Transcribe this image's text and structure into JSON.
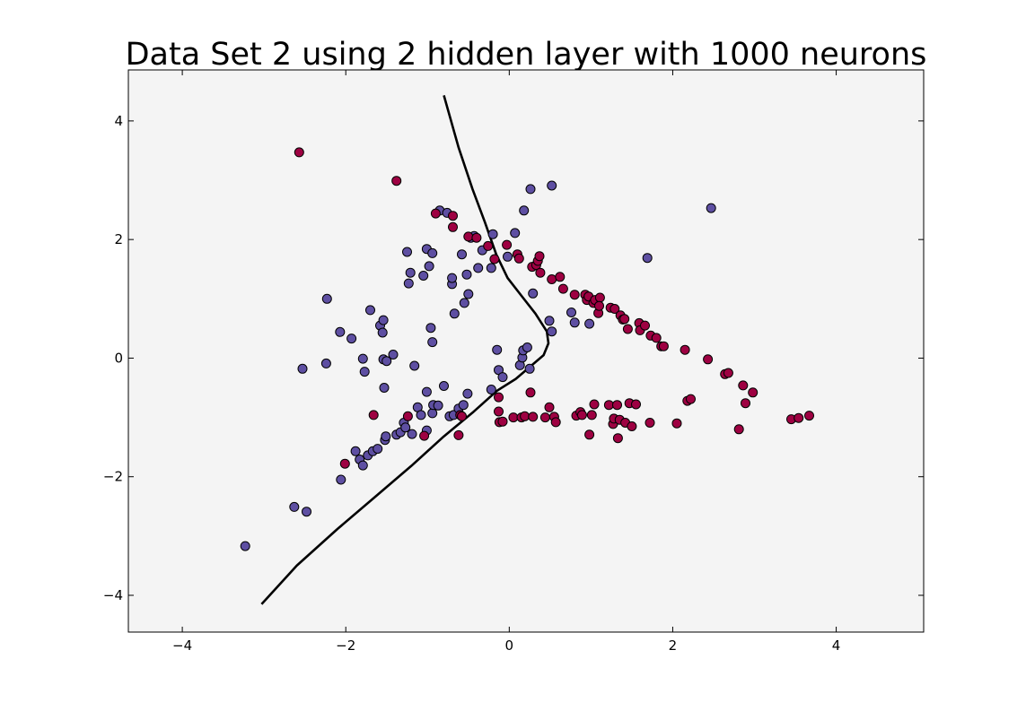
{
  "chart_data": {
    "type": "scatter",
    "title": "Data Set 2 using 2 hidden layer with 1000 neurons",
    "xlabel": "",
    "ylabel": "",
    "xlim": [
      -4.66,
      5.07
    ],
    "ylim": [
      -4.62,
      4.86
    ],
    "xticks": [
      -4,
      -2,
      0,
      2,
      4
    ],
    "yticks": [
      -4,
      -2,
      0,
      2,
      4
    ],
    "xtick_labels": [
      "−4",
      "−2",
      "0",
      "2",
      "4"
    ],
    "ytick_labels": [
      "−4",
      "−2",
      "0",
      "2",
      "4"
    ],
    "grid": false,
    "background": "#f4f4f4",
    "series": [
      {
        "color": "#5e4fa2",
        "points": [
          [
            -3.23,
            -3.17
          ],
          [
            -2.63,
            -2.51
          ],
          [
            -2.48,
            -2.59
          ],
          [
            -2.53,
            -0.18
          ],
          [
            -2.24,
            -0.09
          ],
          [
            -2.23,
            1.0
          ],
          [
            -2.07,
            0.44
          ],
          [
            -2.06,
            -2.05
          ],
          [
            -1.93,
            0.33
          ],
          [
            -1.79,
            -0.01
          ],
          [
            -1.77,
            -0.23
          ],
          [
            -1.7,
            0.81
          ],
          [
            -1.88,
            -1.57
          ],
          [
            -1.83,
            -1.71
          ],
          [
            -1.79,
            -1.81
          ],
          [
            -1.73,
            -1.64
          ],
          [
            -1.67,
            -1.57
          ],
          [
            -1.61,
            -1.53
          ],
          [
            -1.58,
            0.55
          ],
          [
            -1.54,
            0.64
          ],
          [
            -1.55,
            0.43
          ],
          [
            -1.54,
            -0.02
          ],
          [
            -1.5,
            -0.05
          ],
          [
            -1.53,
            -0.5
          ],
          [
            -1.52,
            -1.38
          ],
          [
            -1.51,
            -1.32
          ],
          [
            -1.38,
            -1.29
          ],
          [
            -1.33,
            -1.25
          ],
          [
            -1.42,
            0.06
          ],
          [
            -1.25,
            1.79
          ],
          [
            -1.23,
            1.26
          ],
          [
            -1.21,
            1.44
          ],
          [
            -1.29,
            -1.09
          ],
          [
            -1.27,
            -1.17
          ],
          [
            -1.19,
            -1.28
          ],
          [
            -1.16,
            -0.13
          ],
          [
            -1.12,
            -0.83
          ],
          [
            -1.08,
            -0.96
          ],
          [
            -1.05,
            1.39
          ],
          [
            -1.01,
            1.84
          ],
          [
            -1.01,
            -0.57
          ],
          [
            -1.01,
            -1.22
          ],
          [
            -0.98,
            1.55
          ],
          [
            -0.96,
            0.51
          ],
          [
            -0.94,
            1.77
          ],
          [
            -0.94,
            0.27
          ],
          [
            -0.94,
            -0.93
          ],
          [
            -0.93,
            -0.79
          ],
          [
            -0.87,
            -0.8
          ],
          [
            -0.85,
            2.49
          ],
          [
            -0.8,
            -0.47
          ],
          [
            -0.76,
            2.45
          ],
          [
            -0.73,
            -0.98
          ],
          [
            -0.7,
            1.25
          ],
          [
            -0.7,
            1.35
          ],
          [
            -0.68,
            -0.96
          ],
          [
            -0.67,
            0.75
          ],
          [
            -0.62,
            -0.85
          ],
          [
            -0.58,
            1.75
          ],
          [
            -0.55,
            0.93
          ],
          [
            -0.56,
            -0.79
          ],
          [
            -0.52,
            1.41
          ],
          [
            -0.51,
            -0.6
          ],
          [
            -0.5,
            1.08
          ],
          [
            -0.47,
            2.03
          ],
          [
            -0.43,
            2.06
          ],
          [
            -0.38,
            1.52
          ],
          [
            -0.33,
            1.82
          ],
          [
            -0.22,
            1.52
          ],
          [
            -0.22,
            -0.53
          ],
          [
            -0.2,
            2.09
          ],
          [
            -0.15,
            0.14
          ],
          [
            -0.13,
            -0.2
          ],
          [
            -0.08,
            -0.32
          ],
          [
            -0.02,
            1.71
          ],
          [
            0.07,
            2.11
          ],
          [
            0.13,
            -0.12
          ],
          [
            0.16,
            0.01
          ],
          [
            0.17,
            0.13
          ],
          [
            0.18,
            2.49
          ],
          [
            0.22,
            0.18
          ],
          [
            0.25,
            -0.18
          ],
          [
            0.26,
            2.85
          ],
          [
            0.29,
            1.09
          ],
          [
            0.49,
            0.63
          ],
          [
            0.52,
            0.45
          ],
          [
            0.52,
            2.91
          ],
          [
            0.76,
            0.77
          ],
          [
            0.8,
            0.6
          ],
          [
            0.98,
            0.58
          ],
          [
            1.69,
            1.69
          ],
          [
            2.47,
            2.53
          ]
        ]
      },
      {
        "color": "#9e0142",
        "points": [
          [
            -2.57,
            3.47
          ],
          [
            -1.38,
            2.99
          ],
          [
            -2.01,
            -1.78
          ],
          [
            -1.66,
            -0.96
          ],
          [
            -1.24,
            -0.98
          ],
          [
            -1.04,
            -1.31
          ],
          [
            -0.9,
            2.44
          ],
          [
            -0.69,
            2.4
          ],
          [
            -0.69,
            2.21
          ],
          [
            -0.62,
            -1.3
          ],
          [
            -0.6,
            -0.96
          ],
          [
            -0.58,
            -0.98
          ],
          [
            -0.5,
            2.05
          ],
          [
            -0.4,
            2.03
          ],
          [
            -0.26,
            1.89
          ],
          [
            -0.18,
            1.67
          ],
          [
            -0.13,
            -0.66
          ],
          [
            -0.13,
            -0.9
          ],
          [
            -0.12,
            -1.08
          ],
          [
            -0.08,
            -1.07
          ],
          [
            -0.03,
            1.91
          ],
          [
            0.05,
            -1.0
          ],
          [
            0.1,
            1.75
          ],
          [
            0.12,
            1.68
          ],
          [
            0.15,
            -1.0
          ],
          [
            0.19,
            -0.98
          ],
          [
            0.26,
            -0.58
          ],
          [
            0.28,
            1.54
          ],
          [
            0.29,
            -0.99
          ],
          [
            0.33,
            1.57
          ],
          [
            0.35,
            1.64
          ],
          [
            0.37,
            1.72
          ],
          [
            0.38,
            1.44
          ],
          [
            0.44,
            -1.0
          ],
          [
            0.49,
            -0.83
          ],
          [
            0.52,
            1.33
          ],
          [
            0.55,
            -0.99
          ],
          [
            0.57,
            -1.08
          ],
          [
            0.62,
            1.37
          ],
          [
            0.66,
            1.17
          ],
          [
            0.8,
            1.07
          ],
          [
            0.82,
            -0.97
          ],
          [
            0.87,
            -0.91
          ],
          [
            0.89,
            -0.96
          ],
          [
            0.93,
            1.07
          ],
          [
            0.95,
            0.98
          ],
          [
            0.97,
            1.04
          ],
          [
            0.98,
            -1.29
          ],
          [
            1.01,
            -0.96
          ],
          [
            1.03,
            0.93
          ],
          [
            1.05,
            0.98
          ],
          [
            1.09,
            0.76
          ],
          [
            1.11,
            1.02
          ],
          [
            1.04,
            -0.78
          ],
          [
            1.1,
            0.88
          ],
          [
            1.22,
            -0.79
          ],
          [
            1.24,
            0.85
          ],
          [
            1.27,
            -1.11
          ],
          [
            1.28,
            -1.02
          ],
          [
            1.29,
            0.83
          ],
          [
            1.32,
            -0.79
          ],
          [
            1.33,
            -1.35
          ],
          [
            1.35,
            -1.04
          ],
          [
            1.36,
            0.72
          ],
          [
            1.39,
            0.65
          ],
          [
            1.41,
            0.66
          ],
          [
            1.42,
            -1.09
          ],
          [
            1.45,
            0.49
          ],
          [
            1.47,
            -0.76
          ],
          [
            1.5,
            -1.15
          ],
          [
            1.55,
            -0.78
          ],
          [
            1.59,
            0.59
          ],
          [
            1.6,
            0.47
          ],
          [
            1.66,
            0.55
          ],
          [
            1.72,
            -1.09
          ],
          [
            1.73,
            0.38
          ],
          [
            1.8,
            0.34
          ],
          [
            1.86,
            0.2
          ],
          [
            1.89,
            0.2
          ],
          [
            2.05,
            -1.1
          ],
          [
            2.15,
            0.14
          ],
          [
            2.18,
            -0.72
          ],
          [
            2.22,
            -0.69
          ],
          [
            2.43,
            -0.02
          ],
          [
            2.64,
            -0.27
          ],
          [
            2.68,
            -0.25
          ],
          [
            2.81,
            -1.2
          ],
          [
            2.86,
            -0.46
          ],
          [
            2.89,
            -0.76
          ],
          [
            2.98,
            -0.58
          ],
          [
            3.45,
            -1.03
          ],
          [
            3.54,
            -1.01
          ],
          [
            3.67,
            -0.97
          ]
        ]
      }
    ],
    "decision_boundary": {
      "color": "#000000",
      "points": [
        [
          -0.8,
          4.43
        ],
        [
          -0.62,
          3.55
        ],
        [
          -0.45,
          2.85
        ],
        [
          -0.3,
          2.3
        ],
        [
          -0.16,
          1.75
        ],
        [
          -0.02,
          1.35
        ],
        [
          0.15,
          1.05
        ],
        [
          0.32,
          0.75
        ],
        [
          0.46,
          0.45
        ],
        [
          0.48,
          0.25
        ],
        [
          0.42,
          0.05
        ],
        [
          0.25,
          -0.15
        ],
        [
          0.08,
          -0.35
        ],
        [
          -0.15,
          -0.55
        ],
        [
          -0.45,
          -0.92
        ],
        [
          -0.8,
          -1.32
        ],
        [
          -1.2,
          -1.82
        ],
        [
          -1.65,
          -2.35
        ],
        [
          -2.1,
          -2.88
        ],
        [
          -2.6,
          -3.5
        ],
        [
          -3.03,
          -4.15
        ]
      ]
    }
  }
}
